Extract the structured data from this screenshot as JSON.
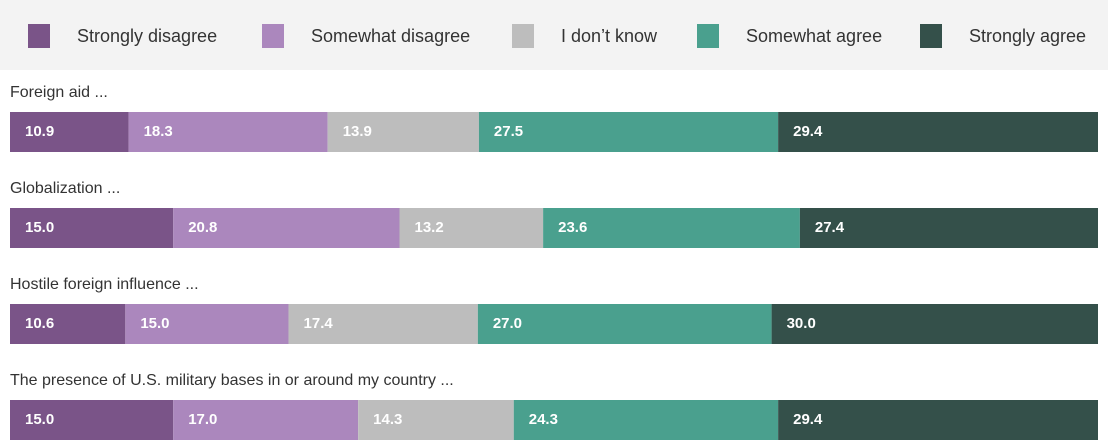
{
  "chart_data": {
    "type": "bar",
    "orientation": "horizontal",
    "stacked": true,
    "categories": [
      "Foreign aid ...",
      "Globalization ...",
      "Hostile foreign influence ...",
      "The presence of U.S. military bases in or around my country ..."
    ],
    "xlim": [
      0,
      100
    ],
    "legend": "top",
    "series": [
      {
        "name": "Strongly disagree",
        "color": "#7a5488",
        "values": [
          10.9,
          15,
          10.6,
          15
        ],
        "value_labels": [
          "10.9",
          "15.0",
          "10.6",
          "15.0"
        ]
      },
      {
        "name": "Somewhat disagree",
        "color": "#ab87bd",
        "values": [
          18.3,
          20.8,
          15,
          17
        ],
        "value_labels": [
          "18.3",
          "20.8",
          "15.0",
          "17.0"
        ]
      },
      {
        "name": "I don’t know",
        "color": "#bdbdbd",
        "values": [
          13.9,
          13.2,
          17.4,
          14.3
        ],
        "value_labels": [
          "13.9",
          "13.2",
          "17.4",
          "14.3"
        ]
      },
      {
        "name": "Somewhat agree",
        "color": "#4aa08e",
        "values": [
          27.5,
          23.6,
          27,
          24.3
        ],
        "value_labels": [
          "27.5",
          "23.6",
          "27.0",
          "24.3"
        ]
      },
      {
        "name": "Strongly agree",
        "color": "#34504a",
        "values": [
          29.4,
          27.4,
          30,
          29.4
        ],
        "value_labels": [
          "29.4",
          "27.4",
          "30.0",
          "29.4"
        ]
      }
    ]
  }
}
